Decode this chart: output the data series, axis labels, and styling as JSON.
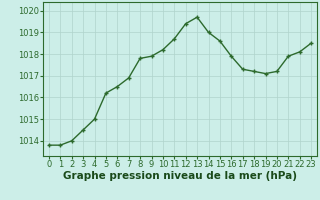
{
  "x": [
    0,
    1,
    2,
    3,
    4,
    5,
    6,
    7,
    8,
    9,
    10,
    11,
    12,
    13,
    14,
    15,
    16,
    17,
    18,
    19,
    20,
    21,
    22,
    23
  ],
  "y": [
    1013.8,
    1013.8,
    1014.0,
    1014.5,
    1015.0,
    1016.2,
    1016.5,
    1016.9,
    1017.8,
    1017.9,
    1018.2,
    1018.7,
    1019.4,
    1019.7,
    1019.0,
    1018.6,
    1017.9,
    1017.3,
    1017.2,
    1017.1,
    1017.2,
    1017.9,
    1018.1,
    1018.5
  ],
  "line_color": "#2d6a2d",
  "marker": "+",
  "marker_size": 3.5,
  "line_width": 1.0,
  "background_color": "#cceee8",
  "grid_color": "#b0d4cc",
  "xlabel": "Graphe pression niveau de la mer (hPa)",
  "xlabel_color": "#1a4a1a",
  "xlabel_fontsize": 7.5,
  "ylabel_ticks": [
    1014,
    1015,
    1016,
    1017,
    1018,
    1019,
    1020
  ],
  "ylim": [
    1013.3,
    1020.4
  ],
  "xlim": [
    -0.5,
    23.5
  ],
  "tick_color": "#2d6a2d",
  "tick_fontsize": 6.0,
  "border_color": "#2d6a2d"
}
